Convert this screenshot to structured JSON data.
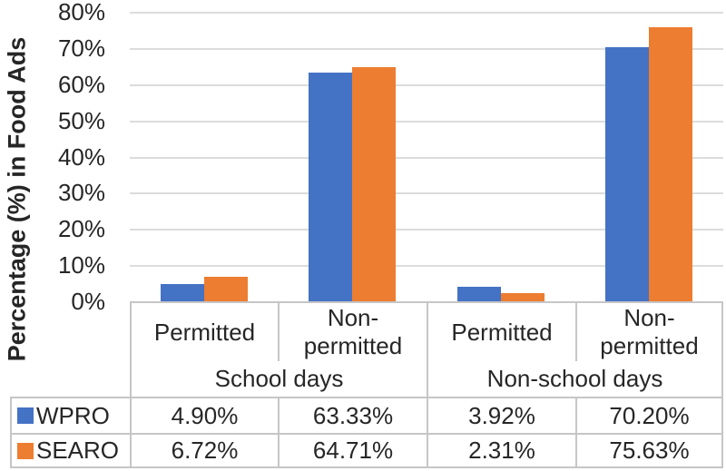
{
  "chart_data": {
    "type": "bar",
    "title": "",
    "ylabel": "Percentage (%) in Food Ads",
    "xlabel": "",
    "ylim": [
      0,
      80
    ],
    "ytick_step": 10,
    "ytick_labels": [
      "0%",
      "10%",
      "20%",
      "30%",
      "40%",
      "50%",
      "60%",
      "70%",
      "80%"
    ],
    "grid": true,
    "legend_position": "table-left",
    "group_labels": [
      "School days",
      "Non-school days"
    ],
    "categories": [
      "Permitted",
      "Non-permitted",
      "Permitted",
      "Non-permitted"
    ],
    "series": [
      {
        "name": "WPRO",
        "color": "#4472C4",
        "values": [
          4.9,
          63.33,
          3.92,
          70.2
        ],
        "display": [
          "4.90%",
          "63.33%",
          "3.92%",
          "70.20%"
        ]
      },
      {
        "name": "SEARO",
        "color": "#ED7D31",
        "values": [
          6.72,
          64.71,
          2.31,
          75.63
        ],
        "display": [
          "6.72%",
          "64.71%",
          "2.31%",
          "75.63%"
        ]
      }
    ]
  },
  "colors": {
    "grid": "#dcdcdc",
    "table_border": "#c6c6c6",
    "text": "#262626",
    "wpro_blue": "#4472C4",
    "searo_orange": "#ED7D31"
  }
}
